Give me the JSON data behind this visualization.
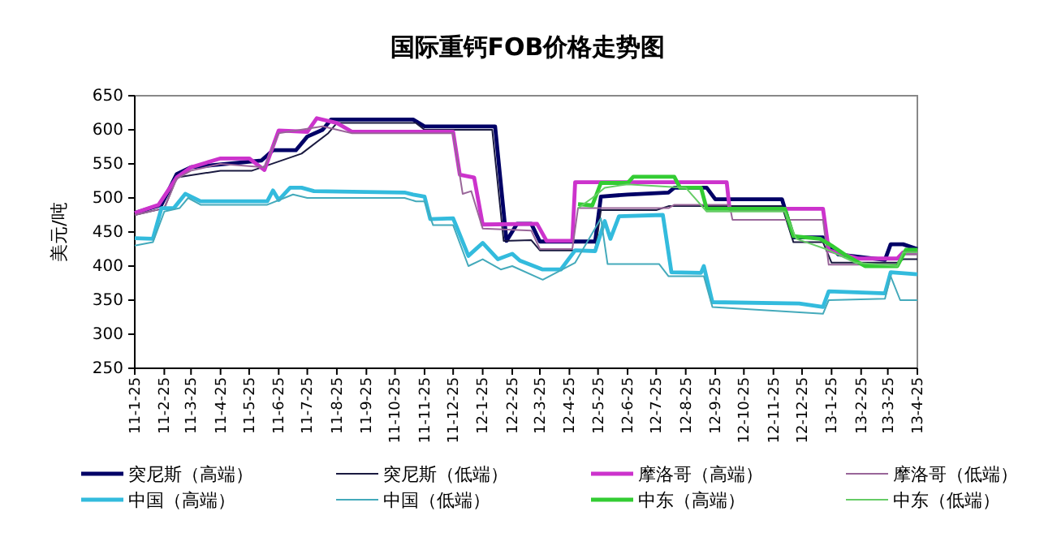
{
  "chart_data": {
    "type": "line",
    "title": "国际重钙FOB价格走势图",
    "ylabel": "美元/吨",
    "legend": "bottom",
    "grid": false,
    "marker": "none",
    "line_style": "solid",
    "ylim": [
      250,
      650
    ],
    "yticks": [
      250,
      300,
      350,
      400,
      450,
      500,
      550,
      600,
      650
    ],
    "xlim": [
      "2011-01-25",
      "2013-04-25"
    ],
    "xticks": [
      {
        "value": "2011-01-25",
        "label": "11-1-25"
      },
      {
        "value": "2011-02-25",
        "label": "11-2-25"
      },
      {
        "value": "2011-03-25",
        "label": "11-3-25"
      },
      {
        "value": "2011-04-25",
        "label": "11-4-25"
      },
      {
        "value": "2011-05-25",
        "label": "11-5-25"
      },
      {
        "value": "2011-06-25",
        "label": "11-6-25"
      },
      {
        "value": "2011-07-25",
        "label": "11-7-25"
      },
      {
        "value": "2011-08-25",
        "label": "11-8-25"
      },
      {
        "value": "2011-09-25",
        "label": "11-9-25"
      },
      {
        "value": "2011-10-25",
        "label": "11-10-25"
      },
      {
        "value": "2011-11-25",
        "label": "11-11-25"
      },
      {
        "value": "2011-12-25",
        "label": "11-12-25"
      },
      {
        "value": "2012-01-25",
        "label": "12-1-25"
      },
      {
        "value": "2012-02-25",
        "label": "12-2-25"
      },
      {
        "value": "2012-03-25",
        "label": "12-3-25"
      },
      {
        "value": "2012-04-25",
        "label": "12-4-25"
      },
      {
        "value": "2012-05-25",
        "label": "12-5-25"
      },
      {
        "value": "2012-06-25",
        "label": "12-6-25"
      },
      {
        "value": "2012-07-25",
        "label": "12-7-25"
      },
      {
        "value": "2012-08-25",
        "label": "12-8-25"
      },
      {
        "value": "2012-09-25",
        "label": "12-9-25"
      },
      {
        "value": "2012-10-25",
        "label": "12-10-25"
      },
      {
        "value": "2012-11-25",
        "label": "12-11-25"
      },
      {
        "value": "2012-12-25",
        "label": "12-12-25"
      },
      {
        "value": "2013-01-25",
        "label": "13-1-25"
      },
      {
        "value": "2013-02-25",
        "label": "13-2-25"
      },
      {
        "value": "2013-03-25",
        "label": "13-3-25"
      },
      {
        "value": "2013-04-25",
        "label": "13-4-25"
      }
    ],
    "series": [
      {
        "name": "突尼斯（高端）",
        "color": "#000066",
        "x": [
          "2011-01-25",
          "2011-02-22",
          "2011-03-10",
          "2011-03-25",
          "2011-06-07",
          "2011-06-19",
          "2011-07-13",
          "2011-07-25",
          "2011-08-10",
          "2011-08-19",
          "2011-11-13",
          "2011-11-25",
          "2012-02-07",
          "2012-02-19",
          "2012-03-01",
          "2012-03-16",
          "2012-03-25",
          "2012-05-22",
          "2012-05-28",
          "2012-06-25",
          "2012-08-07",
          "2012-08-13",
          "2012-09-16",
          "2012-09-25",
          "2012-12-04",
          "2012-12-16",
          "2013-01-16",
          "2013-02-01",
          "2013-03-22",
          "2013-03-28",
          "2013-04-10",
          "2013-04-25"
        ],
        "values": [
          478,
          490,
          535,
          545,
          555,
          570,
          570,
          590,
          600,
          615,
          615,
          605,
          605,
          437,
          462,
          462,
          436,
          436,
          502,
          505,
          508,
          515,
          515,
          498,
          498,
          442,
          442,
          417,
          409,
          432,
          432,
          425
        ]
      },
      {
        "name": "突尼斯（低端）",
        "color": "#1a1a40",
        "x": [
          "2011-01-25",
          "2011-02-25",
          "2011-03-10",
          "2011-04-25",
          "2011-05-28",
          "2011-07-19",
          "2011-08-16",
          "2011-08-25",
          "2011-11-16",
          "2011-11-25",
          "2012-02-04",
          "2012-02-16",
          "2012-03-16",
          "2012-03-25",
          "2012-05-22",
          "2012-05-28",
          "2012-07-25",
          "2012-08-07",
          "2012-12-04",
          "2012-12-16",
          "2013-01-16",
          "2013-01-25",
          "2013-04-04",
          "2013-04-10",
          "2013-04-25"
        ],
        "values": [
          475,
          485,
          530,
          540,
          540,
          565,
          595,
          610,
          610,
          600,
          600,
          437,
          438,
          423,
          423,
          482,
          482,
          488,
          488,
          435,
          435,
          405,
          405,
          410,
          410
        ]
      },
      {
        "name": "摩洛哥（高端）",
        "color": "#cc33cc",
        "x": [
          "2011-01-25",
          "2011-02-19",
          "2011-03-10",
          "2011-03-25",
          "2011-04-25",
          "2011-05-25",
          "2011-06-10",
          "2011-06-25",
          "2011-07-25",
          "2011-08-04",
          "2011-08-25",
          "2011-09-10",
          "2011-12-25",
          "2012-01-01",
          "2012-01-16",
          "2012-01-25",
          "2012-03-22",
          "2012-04-01",
          "2012-04-28",
          "2012-05-01",
          "2012-10-07",
          "2012-10-10",
          "2013-01-16",
          "2013-01-22",
          "2013-02-22",
          "2013-04-04",
          "2013-04-10",
          "2013-04-25"
        ],
        "values": [
          478,
          490,
          530,
          545,
          558,
          558,
          541,
          599,
          597,
          617,
          610,
          597,
          597,
          534,
          530,
          461,
          462,
          437,
          437,
          523,
          523,
          484,
          484,
          423,
          411,
          411,
          420,
          420
        ]
      },
      {
        "name": "摩洛哥（低端）",
        "color": "#996699",
        "x": [
          "2011-01-25",
          "2011-02-25",
          "2011-03-10",
          "2011-03-25",
          "2011-04-25",
          "2011-06-10",
          "2011-06-25",
          "2011-08-10",
          "2011-09-10",
          "2011-12-25",
          "2012-01-04",
          "2012-01-13",
          "2012-01-25",
          "2012-03-16",
          "2012-03-25",
          "2012-04-28",
          "2012-05-04",
          "2012-08-07",
          "2012-08-13",
          "2012-10-10",
          "2012-10-13",
          "2013-01-16",
          "2013-01-22",
          "2013-04-04",
          "2013-04-10",
          "2013-04-25"
        ],
        "values": [
          475,
          485,
          528,
          540,
          550,
          545,
          595,
          605,
          595,
          595,
          506,
          510,
          455,
          452,
          425,
          425,
          485,
          485,
          490,
          490,
          468,
          468,
          402,
          402,
          417,
          417
        ]
      },
      {
        "name": "中国（高端）",
        "color": "#33bbdd",
        "x": [
          "2011-01-25",
          "2011-02-13",
          "2011-02-22",
          "2011-03-07",
          "2011-03-19",
          "2011-04-04",
          "2011-06-13",
          "2011-06-19",
          "2011-06-25",
          "2011-07-07",
          "2011-07-19",
          "2011-08-01",
          "2011-11-04",
          "2011-11-13",
          "2011-11-25",
          "2011-12-01",
          "2011-12-25",
          "2011-12-28",
          "2012-01-10",
          "2012-01-25",
          "2012-02-10",
          "2012-02-25",
          "2012-03-04",
          "2012-03-28",
          "2012-04-16",
          "2012-05-01",
          "2012-05-22",
          "2012-06-01",
          "2012-06-07",
          "2012-06-16",
          "2012-08-01",
          "2012-08-10",
          "2012-09-10",
          "2012-09-13",
          "2012-09-22",
          "2012-12-22",
          "2013-01-16",
          "2013-01-22",
          "2013-03-22",
          "2013-03-28",
          "2013-04-25"
        ],
        "values": [
          441,
          440,
          485,
          485,
          506,
          495,
          495,
          511,
          497,
          515,
          515,
          510,
          508,
          505,
          502,
          469,
          470,
          460,
          415,
          434,
          410,
          418,
          408,
          395,
          395,
          423,
          422,
          466,
          440,
          473,
          475,
          391,
          390,
          400,
          347,
          345,
          340,
          363,
          360,
          391,
          388
        ]
      },
      {
        "name": "中国（低端）",
        "color": "#44aabb",
        "x": [
          "2011-01-25",
          "2011-02-13",
          "2011-02-25",
          "2011-03-13",
          "2011-03-22",
          "2011-04-04",
          "2011-06-13",
          "2011-07-01",
          "2011-07-10",
          "2011-07-25",
          "2011-11-04",
          "2011-11-16",
          "2011-11-25",
          "2011-12-04",
          "2011-12-25",
          "2012-01-10",
          "2012-01-25",
          "2012-02-13",
          "2012-02-25",
          "2012-03-28",
          "2012-05-01",
          "2012-05-28",
          "2012-06-04",
          "2012-07-28",
          "2012-08-07",
          "2012-09-13",
          "2012-09-22",
          "2013-01-16",
          "2013-01-22",
          "2013-03-22",
          "2013-03-28",
          "2013-04-07",
          "2013-04-25"
        ],
        "values": [
          430,
          435,
          480,
          485,
          500,
          490,
          490,
          500,
          505,
          500,
          500,
          495,
          495,
          460,
          460,
          400,
          410,
          395,
          400,
          380,
          405,
          470,
          403,
          403,
          385,
          385,
          340,
          330,
          350,
          352,
          385,
          350,
          350
        ]
      },
      {
        "name": "中东（高端）",
        "color": "#33cc33",
        "x": [
          "2012-05-04",
          "2012-05-19",
          "2012-05-28",
          "2012-06-25",
          "2012-07-01",
          "2012-08-13",
          "2012-08-19",
          "2012-09-10",
          "2012-09-16",
          "2012-12-07",
          "2012-12-16",
          "2013-01-13",
          "2013-01-25",
          "2013-02-10",
          "2013-03-01",
          "2013-04-04",
          "2013-04-13",
          "2013-04-25"
        ],
        "values": [
          491,
          489,
          522,
          522,
          531,
          531,
          515,
          515,
          484,
          484,
          444,
          440,
          430,
          415,
          400,
          400,
          424,
          424
        ]
      },
      {
        "name": "中东（低端）",
        "color": "#66cc66",
        "x": [
          "2012-05-04",
          "2012-05-19",
          "2012-06-01",
          "2012-06-25",
          "2012-08-25",
          "2012-09-16",
          "2012-12-07",
          "2012-12-19",
          "2013-01-19",
          "2013-02-19",
          "2013-04-04",
          "2013-04-10",
          "2013-04-25"
        ],
        "values": [
          485,
          500,
          515,
          520,
          515,
          480,
          480,
          440,
          425,
          405,
          400,
          420,
          420
        ]
      }
    ]
  }
}
